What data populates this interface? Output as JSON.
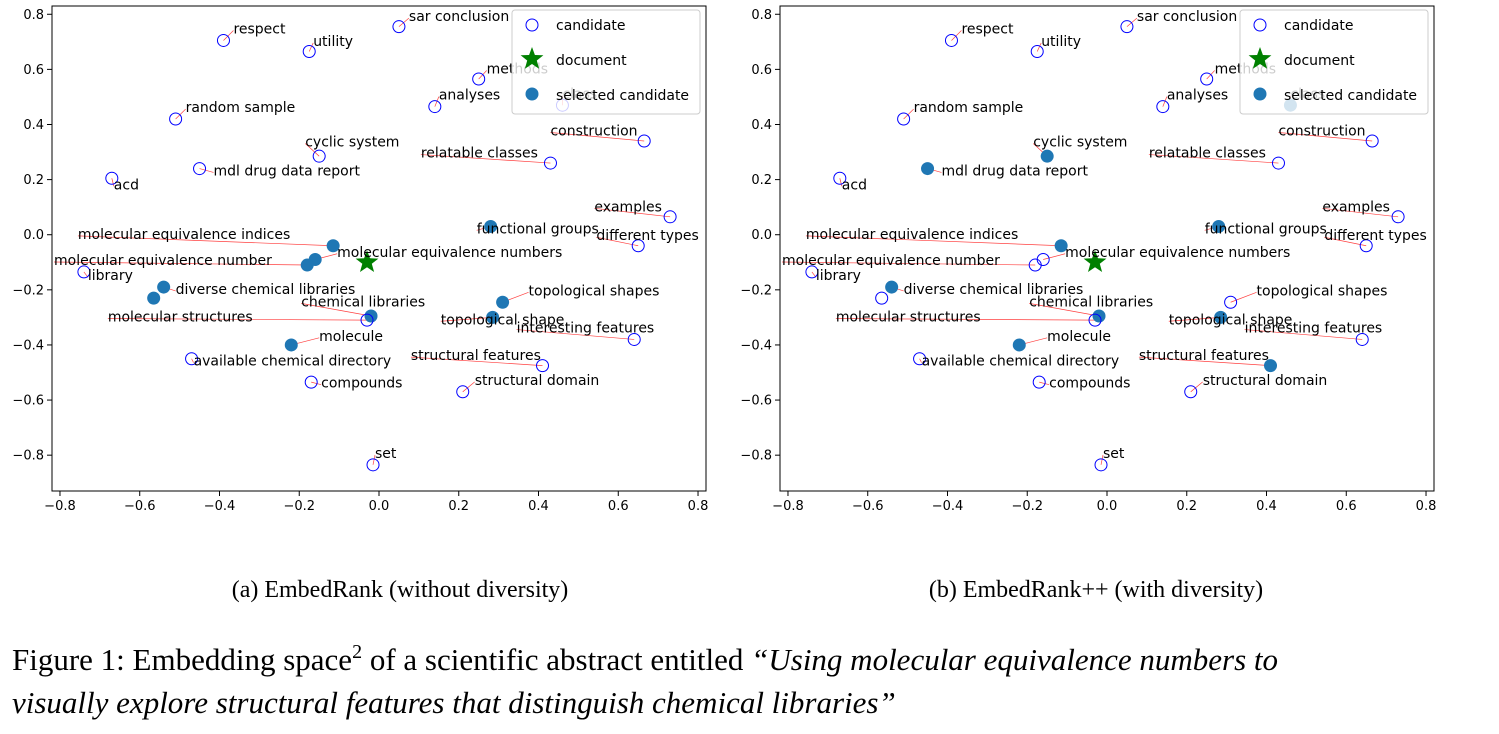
{
  "figure": {
    "caption_prefix": "Figure 1: Embedding space",
    "caption_sup": "2",
    "caption_mid": " of a scientific abstract entitled ",
    "caption_title_line1": "“Using molecular equivalence numbers to",
    "caption_title_line2": "visually explore structural features that distinguish chemical libraries”"
  },
  "colors": {
    "candidate": "#0000ff",
    "selected": "#1f77b4",
    "document": "#008000",
    "leader": "#ff0000"
  },
  "chart_data": [
    {
      "type": "scatter",
      "caption": "(a) EmbedRank (without diversity)",
      "xlim": [
        -0.82,
        0.82
      ],
      "ylim": [
        -0.93,
        0.83
      ],
      "xticks": [
        -0.8,
        -0.6,
        -0.4,
        -0.2,
        0.0,
        0.2,
        0.4,
        0.6,
        0.8
      ],
      "yticks": [
        -0.8,
        -0.6,
        -0.4,
        -0.2,
        0.0,
        0.2,
        0.4,
        0.6,
        0.8
      ],
      "xtick_labels": [
        "−0.8",
        "−0.6",
        "−0.4",
        "−0.2",
        "0.0",
        "0.2",
        "0.4",
        "0.6",
        "0.8"
      ],
      "ytick_labels": [
        "−0.8",
        "−0.6",
        "−0.4",
        "−0.2",
        "0.0",
        "0.2",
        "0.4",
        "0.6",
        "0.8"
      ],
      "legend": [
        "candidate",
        "document",
        "selected candidate"
      ],
      "legend_position": "top-right",
      "document": {
        "x": -0.03,
        "y": -0.1
      },
      "points": [
        {
          "label": "respect",
          "x": -0.39,
          "y": 0.705,
          "tx": -0.365,
          "ty": 0.73,
          "selected": false
        },
        {
          "label": "utility",
          "x": -0.175,
          "y": 0.665,
          "tx": -0.165,
          "ty": 0.685,
          "selected": false
        },
        {
          "label": "sar conclusion",
          "x": 0.05,
          "y": 0.755,
          "tx": 0.075,
          "ty": 0.775,
          "selected": false
        },
        {
          "label": "methods",
          "x": 0.25,
          "y": 0.565,
          "tx": 0.27,
          "ty": 0.585,
          "selected": false
        },
        {
          "label": "class",
          "x": 0.46,
          "y": 0.47,
          "tx": 0.46,
          "ty": 0.495,
          "selected": false
        },
        {
          "label": "analyses",
          "x": 0.14,
          "y": 0.465,
          "tx": 0.15,
          "ty": 0.49,
          "selected": false
        },
        {
          "label": "random sample",
          "x": -0.51,
          "y": 0.42,
          "tx": -0.485,
          "ty": 0.445,
          "selected": false
        },
        {
          "label": "construction",
          "x": 0.665,
          "y": 0.34,
          "tx": 0.43,
          "ty": 0.36,
          "selected": false
        },
        {
          "label": "cyclic system",
          "x": -0.15,
          "y": 0.285,
          "tx": -0.185,
          "ty": 0.32,
          "selected": false
        },
        {
          "label": "relatable classes",
          "x": 0.43,
          "y": 0.26,
          "tx": 0.105,
          "ty": 0.28,
          "selected": false
        },
        {
          "label": "mdl drug data report",
          "x": -0.45,
          "y": 0.24,
          "tx": -0.415,
          "ty": 0.215,
          "selected": false
        },
        {
          "label": "acd",
          "x": -0.67,
          "y": 0.205,
          "tx": -0.665,
          "ty": 0.165,
          "selected": false
        },
        {
          "label": "examples",
          "x": 0.73,
          "y": 0.065,
          "tx": 0.54,
          "ty": 0.085,
          "selected": false
        },
        {
          "label": "functional groups",
          "x": 0.28,
          "y": 0.03,
          "tx": 0.245,
          "ty": 0.005,
          "selected": true
        },
        {
          "label": "different types",
          "x": 0.65,
          "y": -0.04,
          "tx": 0.545,
          "ty": -0.02,
          "selected": false
        },
        {
          "label": "molecular equivalence indices",
          "x": -0.115,
          "y": -0.04,
          "tx": -0.755,
          "ty": -0.015,
          "selected": true
        },
        {
          "label": "molecular equivalence numbers",
          "x": -0.16,
          "y": -0.09,
          "tx": -0.105,
          "ty": -0.08,
          "selected": true
        },
        {
          "label": "molecular equivalence number",
          "x": -0.18,
          "y": -0.11,
          "tx": -0.815,
          "ty": -0.11,
          "selected": true
        },
        {
          "label": "library",
          "x": -0.74,
          "y": -0.135,
          "tx": -0.73,
          "ty": -0.165,
          "selected": false
        },
        {
          "label": "diverse chemical libraries",
          "x": -0.54,
          "y": -0.19,
          "tx": -0.51,
          "ty": -0.215,
          "selected": true
        },
        {
          "label": "diverse chemical libraries (b)",
          "x": -0.565,
          "y": -0.23,
          "tx": null,
          "ty": null,
          "selected": true
        },
        {
          "label": "topological shapes",
          "x": 0.31,
          "y": -0.245,
          "tx": 0.375,
          "ty": -0.22,
          "selected": true
        },
        {
          "label": "chemical libraries",
          "x": -0.02,
          "y": -0.295,
          "tx": -0.195,
          "ty": -0.26,
          "selected": true
        },
        {
          "label": "molecular structures",
          "x": -0.03,
          "y": -0.31,
          "tx": -0.68,
          "ty": -0.315,
          "selected": false
        },
        {
          "label": "topological shape",
          "x": 0.285,
          "y": -0.3,
          "tx": 0.155,
          "ty": -0.325,
          "selected": true
        },
        {
          "label": "interesting features",
          "x": 0.64,
          "y": -0.38,
          "tx": 0.345,
          "ty": -0.355,
          "selected": false
        },
        {
          "label": "molecule",
          "x": -0.22,
          "y": -0.4,
          "tx": -0.15,
          "ty": -0.385,
          "selected": true
        },
        {
          "label": "structural features",
          "x": 0.41,
          "y": -0.475,
          "tx": 0.08,
          "ty": -0.455,
          "selected": false
        },
        {
          "label": "available chemical directory",
          "x": -0.47,
          "y": -0.45,
          "tx": -0.465,
          "ty": -0.475,
          "selected": false
        },
        {
          "label": "compounds",
          "x": -0.17,
          "y": -0.535,
          "tx": -0.145,
          "ty": -0.555,
          "selected": false
        },
        {
          "label": "structural domain",
          "x": 0.21,
          "y": -0.57,
          "tx": 0.24,
          "ty": -0.545,
          "selected": false
        },
        {
          "label": "set",
          "x": -0.015,
          "y": -0.835,
          "tx": -0.01,
          "ty": -0.81,
          "selected": false
        }
      ]
    },
    {
      "type": "scatter",
      "caption": "(b) EmbedRank++ (with diversity)",
      "xlim": [
        -0.82,
        0.82
      ],
      "ylim": [
        -0.93,
        0.83
      ],
      "xticks": [
        -0.8,
        -0.6,
        -0.4,
        -0.2,
        0.0,
        0.2,
        0.4,
        0.6,
        0.8
      ],
      "yticks": [
        -0.8,
        -0.6,
        -0.4,
        -0.2,
        0.0,
        0.2,
        0.4,
        0.6,
        0.8
      ],
      "xtick_labels": [
        "−0.8",
        "−0.6",
        "−0.4",
        "−0.2",
        "0.0",
        "0.2",
        "0.4",
        "0.6",
        "0.8"
      ],
      "ytick_labels": [
        "−0.8",
        "−0.6",
        "−0.4",
        "−0.2",
        "0.0",
        "0.2",
        "0.4",
        "0.6",
        "0.8"
      ],
      "legend": [
        "candidate",
        "document",
        "selected candidate"
      ],
      "legend_position": "top-right",
      "document": {
        "x": -0.03,
        "y": -0.1
      },
      "points": [
        {
          "label": "respect",
          "x": -0.39,
          "y": 0.705,
          "tx": -0.365,
          "ty": 0.73,
          "selected": false
        },
        {
          "label": "utility",
          "x": -0.175,
          "y": 0.665,
          "tx": -0.165,
          "ty": 0.685,
          "selected": false
        },
        {
          "label": "sar conclusion",
          "x": 0.05,
          "y": 0.755,
          "tx": 0.075,
          "ty": 0.775,
          "selected": false
        },
        {
          "label": "methods",
          "x": 0.25,
          "y": 0.565,
          "tx": 0.27,
          "ty": 0.585,
          "selected": false
        },
        {
          "label": "class",
          "x": 0.46,
          "y": 0.47,
          "tx": 0.46,
          "ty": 0.495,
          "selected": true
        },
        {
          "label": "analyses",
          "x": 0.14,
          "y": 0.465,
          "tx": 0.15,
          "ty": 0.49,
          "selected": false
        },
        {
          "label": "random sample",
          "x": -0.51,
          "y": 0.42,
          "tx": -0.485,
          "ty": 0.445,
          "selected": false
        },
        {
          "label": "construction",
          "x": 0.665,
          "y": 0.34,
          "tx": 0.43,
          "ty": 0.36,
          "selected": false
        },
        {
          "label": "cyclic system",
          "x": -0.15,
          "y": 0.285,
          "tx": -0.185,
          "ty": 0.32,
          "selected": true
        },
        {
          "label": "relatable classes",
          "x": 0.43,
          "y": 0.26,
          "tx": 0.105,
          "ty": 0.28,
          "selected": false
        },
        {
          "label": "mdl drug data report",
          "x": -0.45,
          "y": 0.24,
          "tx": -0.415,
          "ty": 0.215,
          "selected": true
        },
        {
          "label": "acd",
          "x": -0.67,
          "y": 0.205,
          "tx": -0.665,
          "ty": 0.165,
          "selected": false
        },
        {
          "label": "examples",
          "x": 0.73,
          "y": 0.065,
          "tx": 0.54,
          "ty": 0.085,
          "selected": false
        },
        {
          "label": "functional groups",
          "x": 0.28,
          "y": 0.03,
          "tx": 0.245,
          "ty": 0.005,
          "selected": true
        },
        {
          "label": "different types",
          "x": 0.65,
          "y": -0.04,
          "tx": 0.545,
          "ty": -0.02,
          "selected": false
        },
        {
          "label": "molecular equivalence indices",
          "x": -0.115,
          "y": -0.04,
          "tx": -0.755,
          "ty": -0.015,
          "selected": true
        },
        {
          "label": "molecular equivalence numbers",
          "x": -0.16,
          "y": -0.09,
          "tx": -0.105,
          "ty": -0.08,
          "selected": false
        },
        {
          "label": "molecular equivalence number",
          "x": -0.18,
          "y": -0.11,
          "tx": -0.815,
          "ty": -0.11,
          "selected": false
        },
        {
          "label": "library",
          "x": -0.74,
          "y": -0.135,
          "tx": -0.73,
          "ty": -0.165,
          "selected": false
        },
        {
          "label": "diverse chemical libraries",
          "x": -0.54,
          "y": -0.19,
          "tx": -0.51,
          "ty": -0.215,
          "selected": true
        },
        {
          "label": "diverse chemical libraries (b)",
          "x": -0.565,
          "y": -0.23,
          "tx": null,
          "ty": null,
          "selected": false
        },
        {
          "label": "topological shapes",
          "x": 0.31,
          "y": -0.245,
          "tx": 0.375,
          "ty": -0.22,
          "selected": false
        },
        {
          "label": "chemical libraries",
          "x": -0.02,
          "y": -0.295,
          "tx": -0.195,
          "ty": -0.26,
          "selected": true
        },
        {
          "label": "molecular structures",
          "x": -0.03,
          "y": -0.31,
          "tx": -0.68,
          "ty": -0.315,
          "selected": false
        },
        {
          "label": "topological shape",
          "x": 0.285,
          "y": -0.3,
          "tx": 0.155,
          "ty": -0.325,
          "selected": true
        },
        {
          "label": "interesting features",
          "x": 0.64,
          "y": -0.38,
          "tx": 0.345,
          "ty": -0.355,
          "selected": false
        },
        {
          "label": "molecule",
          "x": -0.22,
          "y": -0.4,
          "tx": -0.15,
          "ty": -0.385,
          "selected": true
        },
        {
          "label": "structural features",
          "x": 0.41,
          "y": -0.475,
          "tx": 0.08,
          "ty": -0.455,
          "selected": true
        },
        {
          "label": "available chemical directory",
          "x": -0.47,
          "y": -0.45,
          "tx": -0.465,
          "ty": -0.475,
          "selected": false
        },
        {
          "label": "compounds",
          "x": -0.17,
          "y": -0.535,
          "tx": -0.145,
          "ty": -0.555,
          "selected": false
        },
        {
          "label": "structural domain",
          "x": 0.21,
          "y": -0.57,
          "tx": 0.24,
          "ty": -0.545,
          "selected": false
        },
        {
          "label": "set",
          "x": -0.015,
          "y": -0.835,
          "tx": -0.01,
          "ty": -0.81,
          "selected": false
        }
      ]
    }
  ]
}
